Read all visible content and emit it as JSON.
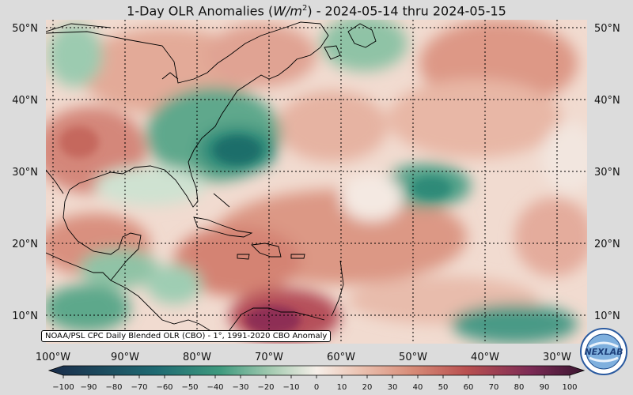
{
  "title": {
    "prefix": "1-Day OLR Anomalies (",
    "unit_base": "W/m",
    "unit_exp": "2",
    "suffix": ") - 2024-05-14 thru 2024-05-15"
  },
  "map": {
    "lat_labels": [
      "50°N",
      "40°N",
      "30°N",
      "20°N",
      "10°N"
    ],
    "lon_labels": [
      "100°W",
      "90°W",
      "80°W",
      "70°W",
      "60°W",
      "50°W",
      "40°W",
      "30°W"
    ],
    "credit": "NOAA/PSL CPC Daily Blended OLR (CBO) - 1°, 1991-2020 CBO Anomaly",
    "logo_text": "NEXLAB"
  },
  "colorbar": {
    "ticks": [
      "−100",
      "−90",
      "−80",
      "−70",
      "−60",
      "−50",
      "−40",
      "−30",
      "−20",
      "−10",
      "0",
      "10",
      "20",
      "30",
      "40",
      "50",
      "60",
      "70",
      "80",
      "90",
      "100"
    ],
    "colors": {
      "neg_strong": "#1a2c4a",
      "neg_mid": "#2e8a78",
      "neg_weak": "#c9dfcc",
      "zero": "#f6efe9",
      "pos_weak": "#ebc3b2",
      "pos_mid": "#c86356",
      "pos_strong": "#5e1a44"
    }
  }
}
